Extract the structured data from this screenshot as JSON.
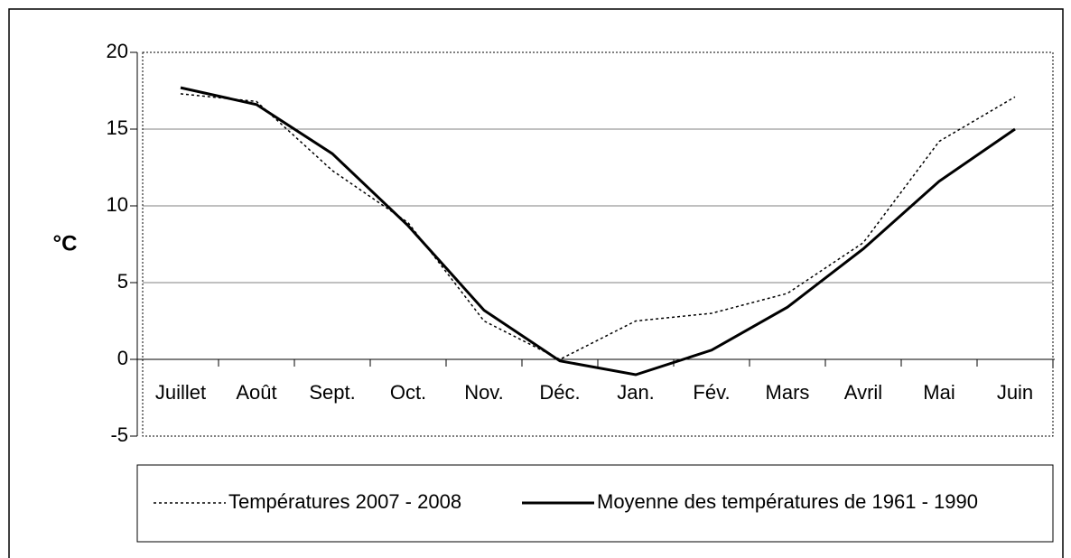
{
  "chart_data": {
    "type": "line",
    "ylabel": "°C",
    "categories": [
      "Juillet",
      "Août",
      "Sept.",
      "Oct.",
      "Nov.",
      "Déc.",
      "Jan.",
      "Fév.",
      "Mars",
      "Avril",
      "Mai",
      "Juin"
    ],
    "series": [
      {
        "name": "Températures 2007 - 2008",
        "color": "#000000",
        "dash": true,
        "values": [
          17.3,
          16.8,
          12.3,
          8.9,
          2.5,
          0,
          2.5,
          3.0,
          4.3,
          7.6,
          14.2,
          17.1
        ]
      },
      {
        "name": "Moyenne des températures de 1961 - 1990",
        "color": "#000000",
        "dash": false,
        "values": [
          17.7,
          16.6,
          13.4,
          8.7,
          3.2,
          -0.1,
          -1.0,
          0.6,
          3.4,
          7.2,
          11.6,
          15.0
        ]
      }
    ],
    "ylim": [
      -5,
      20
    ],
    "yticks": [
      -5,
      0,
      5,
      10,
      15,
      20
    ],
    "grid": true,
    "legend": "bottom"
  }
}
